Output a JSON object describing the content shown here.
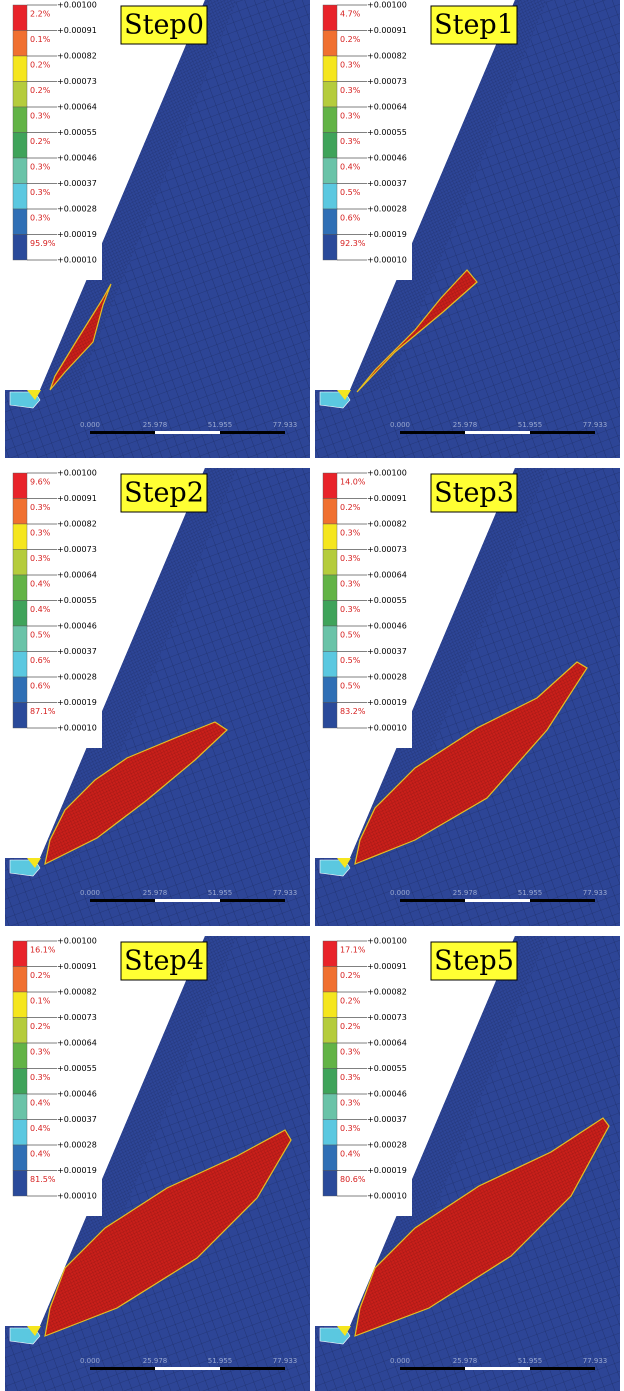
{
  "legend_levels": [
    "+0.00100",
    "+0.00091",
    "+0.00082",
    "+0.00073",
    "+0.00064",
    "+0.00055",
    "+0.00046",
    "+0.00037",
    "+0.00028",
    "+0.00019",
    "+0.00010"
  ],
  "scale_labels": [
    "0.000",
    "25.978",
    "51.955",
    "77.933"
  ],
  "panels": [
    {
      "title": "Step0",
      "percentages": [
        "2.2%",
        "0.1%",
        "0.2%",
        "0.2%",
        "0.3%",
        "0.2%",
        "0.3%",
        "0.3%",
        "0.3%",
        "95.9%"
      ]
    },
    {
      "title": "Step1",
      "percentages": [
        "4.7%",
        "0.2%",
        "0.3%",
        "0.3%",
        "0.3%",
        "0.3%",
        "0.4%",
        "0.5%",
        "0.6%",
        "92.3%"
      ]
    },
    {
      "title": "Step2",
      "percentages": [
        "9.6%",
        "0.3%",
        "0.3%",
        "0.3%",
        "0.4%",
        "0.4%",
        "0.5%",
        "0.6%",
        "0.6%",
        "87.1%"
      ]
    },
    {
      "title": "Step3",
      "percentages": [
        "14.0%",
        "0.2%",
        "0.3%",
        "0.3%",
        "0.3%",
        "0.3%",
        "0.5%",
        "0.5%",
        "0.5%",
        "83.2%"
      ]
    },
    {
      "title": "Step4",
      "percentages": [
        "16.1%",
        "0.2%",
        "0.1%",
        "0.2%",
        "0.3%",
        "0.3%",
        "0.4%",
        "0.4%",
        "0.4%",
        "81.5%"
      ]
    },
    {
      "title": "Step5",
      "percentages": [
        "17.1%",
        "0.2%",
        "0.2%",
        "0.2%",
        "0.3%",
        "0.3%",
        "0.3%",
        "0.3%",
        "0.4%",
        "80.6%"
      ]
    }
  ]
}
